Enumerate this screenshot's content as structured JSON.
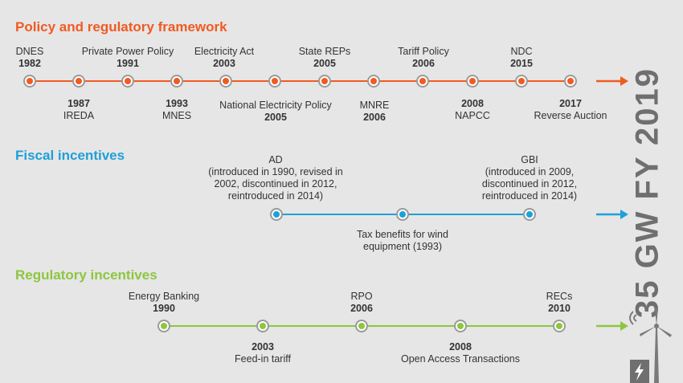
{
  "colors": {
    "policy": "#f15a22",
    "fiscal": "#1ea0d8",
    "regulatory": "#8dc63f",
    "node_ring": "#9a9a9a",
    "side_text": "#6f6f6f"
  },
  "sections": [
    {
      "title": "Policy and regulatory framework",
      "color_key": "policy",
      "events": [
        {
          "year": "1982",
          "name": "DNES",
          "pos": "above"
        },
        {
          "year": "1987",
          "name": "IREDA",
          "pos": "below"
        },
        {
          "year": "1991",
          "name": "Private Power Policy",
          "pos": "above"
        },
        {
          "year": "1993",
          "name": "MNES",
          "pos": "below"
        },
        {
          "year": "2003",
          "name": "Electricity Act",
          "pos": "above"
        },
        {
          "year": "2005",
          "name": "National Electricity Policy",
          "pos": "below"
        },
        {
          "year": "2005",
          "name": "State REPs",
          "pos": "above"
        },
        {
          "year": "2006",
          "name": "MNRE",
          "pos": "below"
        },
        {
          "year": "2006",
          "name": "Tariff Policy",
          "pos": "above"
        },
        {
          "year": "2008",
          "name": "NAPCC",
          "pos": "below"
        },
        {
          "year": "2015",
          "name": "NDC",
          "pos": "above"
        },
        {
          "year": "2017",
          "name": "Reverse Auction",
          "pos": "below"
        }
      ]
    },
    {
      "title": "Fiscal incentives",
      "color_key": "fiscal",
      "events": [
        {
          "name": "AD",
          "detail": "(introduced in 1990, revised in 2002, discontinued in 2012, reintroduced in 2014)",
          "pos": "above"
        },
        {
          "name": "Tax benefits for wind equipment (1993)",
          "pos": "below"
        },
        {
          "name": "GBI",
          "detail": "(introduced in 2009, discontinued in 2012, reintroduced in 2014)",
          "pos": "above"
        }
      ]
    },
    {
      "title": "Regulatory incentives",
      "color_key": "regulatory",
      "events": [
        {
          "year": "1990",
          "name": "Energy Banking",
          "pos": "above"
        },
        {
          "year": "2003",
          "name": "Feed-in tariff",
          "pos": "below"
        },
        {
          "year": "2006",
          "name": "RPO",
          "pos": "above"
        },
        {
          "year": "2008",
          "name": "Open Access Transactions",
          "pos": "below"
        },
        {
          "year": "2010",
          "name": "RECs",
          "pos": "above"
        }
      ]
    }
  ],
  "outcome": "35 GW FY 2019",
  "icons": [
    "arrow-right-icon",
    "wind-turbine-icon",
    "lightning-bolt-icon"
  ]
}
